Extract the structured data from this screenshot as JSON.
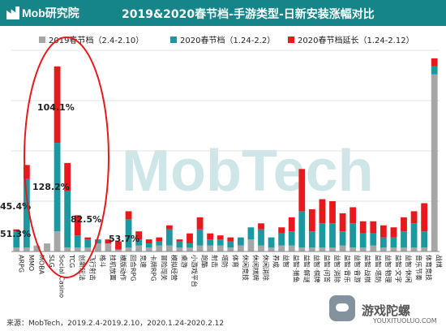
{
  "header": {
    "logo_text": "Mob研究院",
    "title": "2019&2020春节档-手游类型-日新安装涨幅对比"
  },
  "footer": {
    "source": "来源：MobTech，2019.2.4-2019.2.10，2020.1.24-2020.2.12",
    "watermark_name": "游戏陀螺",
    "watermark_url": "YOUXITUOLUO.COM"
  },
  "chart_data": {
    "type": "bar",
    "title": "2019&2020春节档-手游类型-日新安装涨幅对比",
    "series": [
      {
        "name": "2019春节档（2.4-2.10）",
        "color": "#a6a6a6",
        "values": [
          2,
          2,
          3,
          4,
          10,
          2,
          2,
          2,
          4,
          4,
          1,
          2,
          3,
          2,
          3,
          3,
          2,
          2,
          3,
          3,
          3,
          2,
          3,
          6,
          3,
          2,
          3,
          3,
          2,
          2,
          2,
          2,
          3,
          2,
          2,
          3,
          2,
          2,
          2,
          2,
          2,
          88
        ]
      },
      {
        "name": "2020春节档（1.24-2.2）",
        "color": "#1a9aa0",
        "values": [
          8,
          34,
          0,
          0,
          44,
          28,
          6,
          4,
          2,
          0,
          0,
          14,
          3,
          2,
          2,
          8,
          3,
          2,
          8,
          3,
          3,
          3,
          4,
          6,
          8,
          5,
          6,
          7,
          18,
          8,
          12,
          12,
          7,
          12,
          7,
          6,
          5,
          5,
          8,
          12,
          8,
          4
        ]
      },
      {
        "name": "2020春节档延长（1.24-2.12）",
        "color": "#e8191c",
        "values": [
          1,
          7,
          0,
          0,
          38,
          14,
          10,
          1,
          0,
          2,
          4,
          4,
          4,
          2,
          2,
          2,
          1,
          5,
          6,
          3,
          2,
          2,
          0,
          0,
          3,
          0,
          3,
          7,
          21,
          11,
          12,
          11,
          9,
          8,
          6,
          6,
          6,
          5,
          7,
          6,
          14,
          4
        ]
      }
    ],
    "categories": [
      "ARPG",
      "MMO",
      "MOBA",
      "SLG",
      "Social Casino",
      "TCG",
      "创新玩法",
      "飞行射击",
      "格斗",
      "挂机放置",
      "横版动作",
      "回合RPG",
      "竞速",
      "卡牌RPG",
      "冒险闯关",
      "模拟经营",
      "桌游",
      "小游戏平台",
      "跑酷",
      "射击",
      "塔防",
      "体育",
      "休闲竞技",
      "休闲棋牌",
      "休闲消除",
      "养成",
      "益智",
      "益智·捕鱼",
      "益智·解谜",
      "益智·棋牌",
      "益智·问答",
      "益智·消除",
      "益智·音乐",
      "益智·音游",
      "益智·战棋",
      "益智·塔防",
      "益智·物理",
      "益智·文字",
      "益智·休闲",
      "音乐节奏",
      "体育竞技",
      "战棋"
    ],
    "annotations": [
      "104.1%",
      "128.2%",
      "82.5%",
      "45.4%",
      "51.3%",
      "53.7%"
    ],
    "ylim": [
      0,
      100
    ],
    "grid": true,
    "legend_position": "top"
  }
}
